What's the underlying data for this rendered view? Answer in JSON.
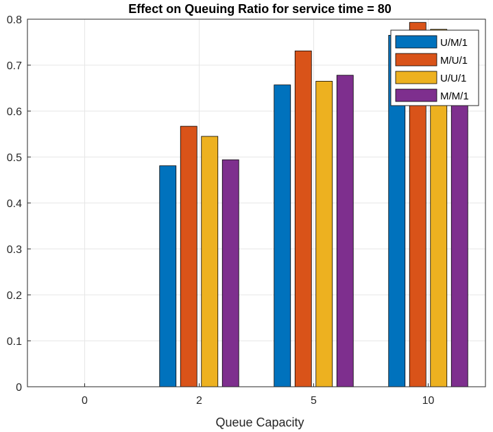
{
  "chart_data": {
    "type": "bar",
    "title": "Effect on Queuing Ratio for service time = 80",
    "xlabel": "Queue Capacity",
    "ylabel": "",
    "categories": [
      "0",
      "2",
      "5",
      "10"
    ],
    "ylim": [
      0,
      0.8
    ],
    "yticks": [
      "0",
      "0.1",
      "0.2",
      "0.3",
      "0.4",
      "0.5",
      "0.6",
      "0.7",
      "0.8"
    ],
    "grid": true,
    "legend_position": "top-right",
    "series": [
      {
        "name": "U/M/1",
        "color": "#0072BD",
        "values": [
          0,
          0.481,
          0.657,
          0.765
        ]
      },
      {
        "name": "M/U/1",
        "color": "#D95319",
        "values": [
          0,
          0.567,
          0.731,
          0.793
        ]
      },
      {
        "name": "U/U/1",
        "color": "#EDB120",
        "values": [
          0,
          0.545,
          0.665,
          0.778
        ]
      },
      {
        "name": "M/M/1",
        "color": "#7E2F8E",
        "values": [
          0,
          0.494,
          0.678,
          0.763
        ]
      }
    ]
  }
}
